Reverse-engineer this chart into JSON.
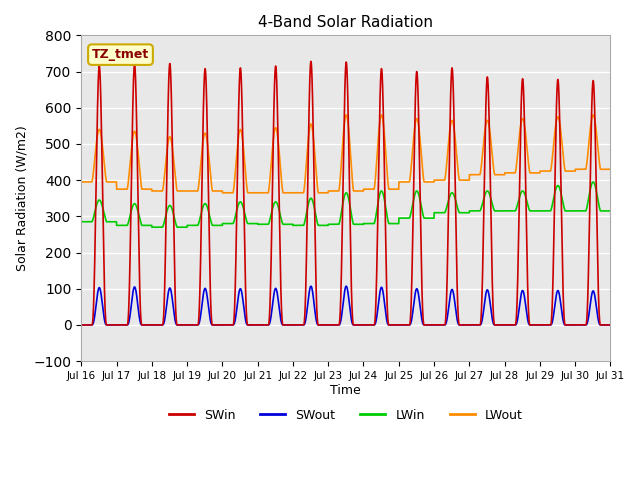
{
  "title": "4-Band Solar Radiation",
  "xlabel": "Time",
  "ylabel": "Solar Radiation (W/m2)",
  "ylim": [
    -100,
    800
  ],
  "annotation_label": "TZ_tmet",
  "x_tick_labels": [
    "Jul 16",
    "Jul 17",
    "Jul 18",
    "Jul 19",
    "Jul 20",
    "Jul 21",
    "Jul 22",
    "Jul 23",
    "Jul 24",
    "Jul 25",
    "Jul 26",
    "Jul 27",
    "Jul 28",
    "Jul 29",
    "Jul 30",
    "Jul 31"
  ],
  "legend_entries": [
    "SWin",
    "SWout",
    "LWin",
    "LWout"
  ],
  "legend_colors": [
    "#cc0000",
    "#0000dd",
    "#00cc00",
    "#ff8c00"
  ],
  "background_color": "#e8e8e8",
  "SWin_peaks": [
    715,
    720,
    722,
    708,
    710,
    715,
    728,
    726,
    708,
    700,
    710,
    685,
    680,
    678,
    675
  ],
  "SWout_peaks": [
    103,
    105,
    102,
    101,
    100,
    101,
    107,
    107,
    104,
    100,
    98,
    97,
    95,
    95,
    94
  ],
  "LWout_baseline": [
    395,
    375,
    370,
    370,
    365,
    365,
    365,
    370,
    375,
    395,
    400,
    415,
    420,
    425,
    430
  ],
  "LWout_peaks": [
    540,
    535,
    520,
    530,
    540,
    545,
    555,
    580,
    580,
    570,
    565,
    565,
    570,
    575,
    580
  ],
  "LWin_baseline": [
    285,
    275,
    270,
    275,
    280,
    278,
    275,
    278,
    280,
    295,
    310,
    315,
    315,
    315,
    315
  ],
  "LWin_peaks": [
    345,
    335,
    330,
    335,
    340,
    340,
    350,
    365,
    370,
    370,
    365,
    370,
    370,
    385,
    395
  ],
  "num_days": 15,
  "points_per_day": 500,
  "day_start": 0.3,
  "day_end": 0.72,
  "day_peak": 0.5,
  "sw_power": 2.5,
  "lw_power": 1.5
}
